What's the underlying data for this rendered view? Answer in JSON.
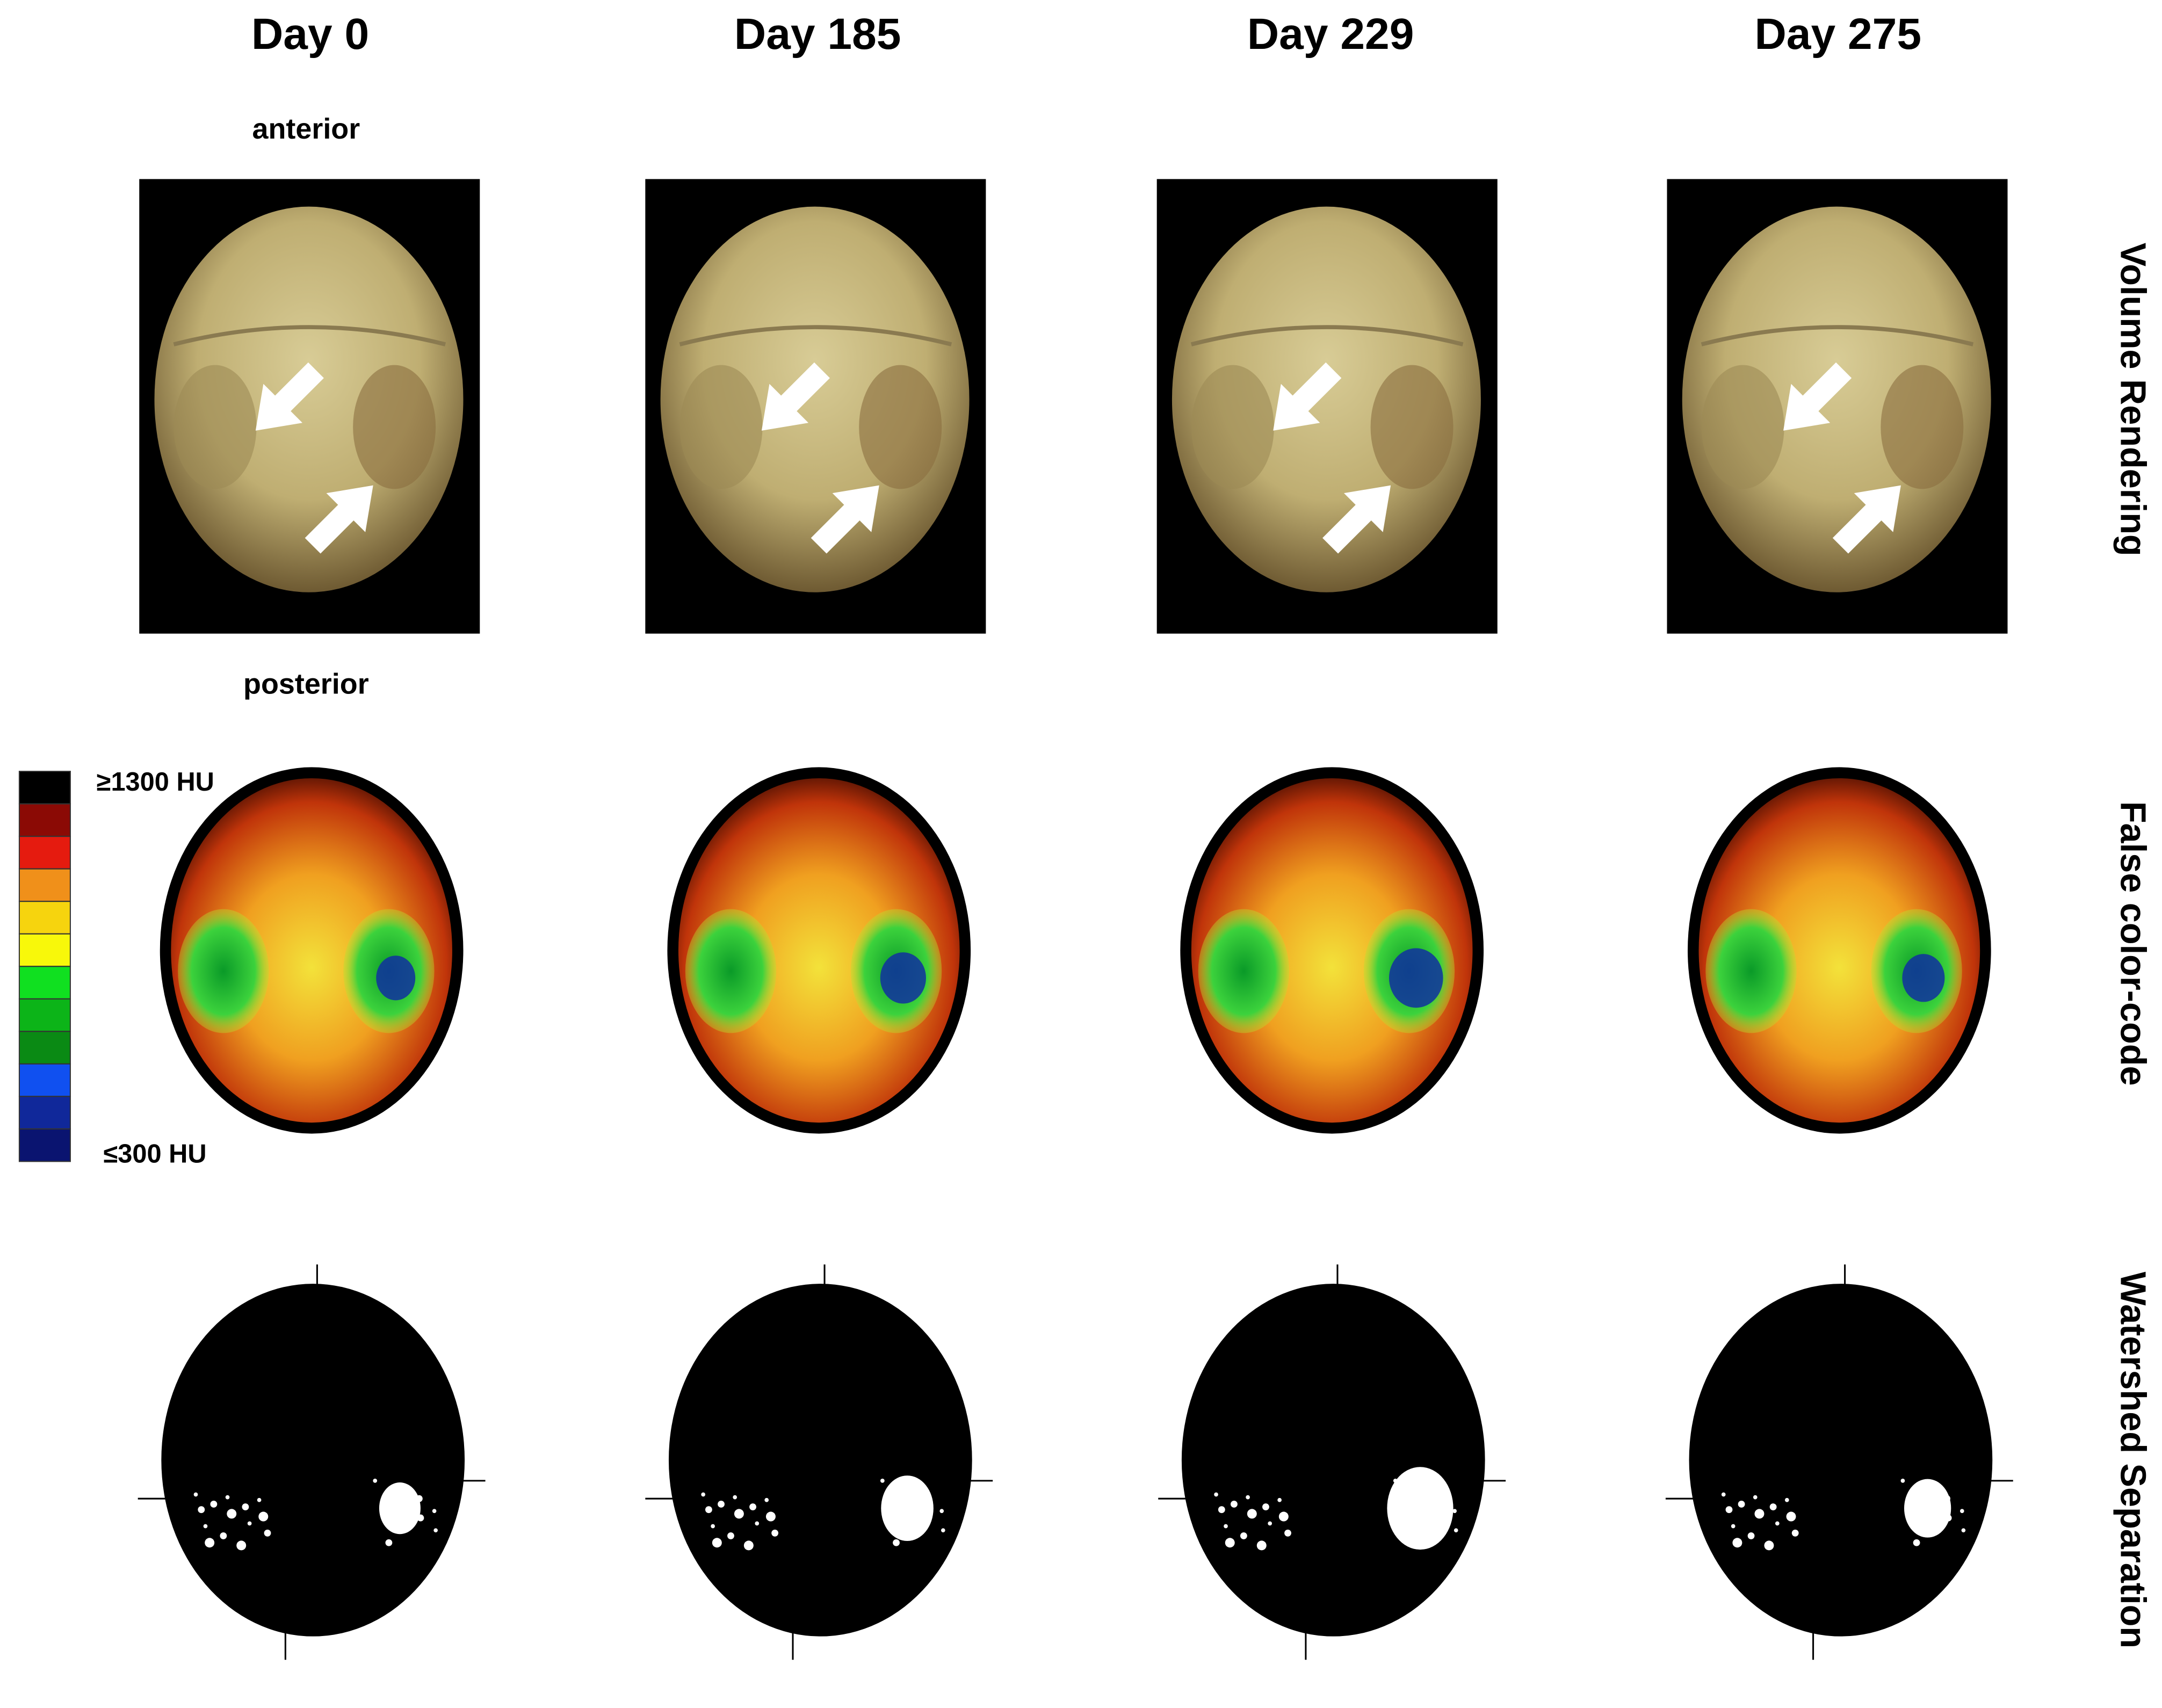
{
  "columns": [
    "Day 0",
    "Day 185",
    "Day 229",
    "Day 275"
  ],
  "orientation": {
    "top": "anterior",
    "bottom": "posterior"
  },
  "rows": [
    "Volume Rendering",
    "False color-code",
    "Watershed Separation"
  ],
  "legend": {
    "max_label": "≥1300 HU",
    "min_label": "≤300 HU"
  }
}
